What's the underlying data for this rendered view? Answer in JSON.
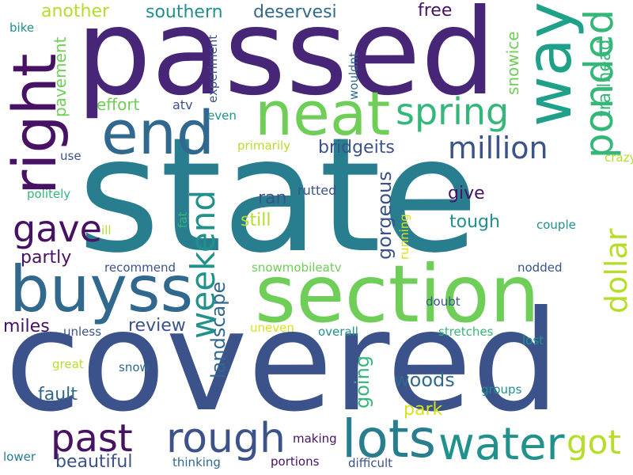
{
  "palette": {
    "indigo": "#482677",
    "purple": "#471164",
    "blue": "#3b528b",
    "blue_dark": "#31688e",
    "teal": "#287d8e",
    "teal_green": "#21918c",
    "green_teal": "#1fa088",
    "green": "#35b779",
    "light_green": "#6ece58",
    "lime": "#b5de2b",
    "yellow": "#d8e219"
  },
  "words": [
    {
      "id": "state",
      "text": "state"
    },
    {
      "id": "covered",
      "text": "covered"
    },
    {
      "id": "passed",
      "text": "passed"
    },
    {
      "id": "section",
      "text": "section"
    },
    {
      "id": "right",
      "text": "right"
    },
    {
      "id": "buyss",
      "text": "buyss"
    },
    {
      "id": "neat",
      "text": "neat"
    },
    {
      "id": "end",
      "text": "end"
    },
    {
      "id": "way",
      "text": "way"
    },
    {
      "id": "lots",
      "text": "lots"
    },
    {
      "id": "water",
      "text": "water"
    },
    {
      "id": "rough",
      "text": "rough"
    },
    {
      "id": "past",
      "text": "past"
    },
    {
      "id": "spring",
      "text": "spring"
    },
    {
      "id": "ponded",
      "text": "ponded"
    },
    {
      "id": "gave",
      "text": "gave"
    },
    {
      "id": "weekend",
      "text": "weekend"
    },
    {
      "id": "million",
      "text": "million"
    },
    {
      "id": "dollar",
      "text": "dollar"
    },
    {
      "id": "got",
      "text": "got"
    },
    {
      "id": "beautiful",
      "text": "beautiful"
    },
    {
      "id": "landscape",
      "text": "landscape"
    },
    {
      "id": "review",
      "text": "review"
    },
    {
      "id": "miles",
      "text": "miles"
    },
    {
      "id": "woods",
      "text": "woods"
    },
    {
      "id": "fault",
      "text": "fault"
    },
    {
      "id": "going",
      "text": "going"
    },
    {
      "id": "gorgeous",
      "text": "gorgeous"
    },
    {
      "id": "partly",
      "text": "partly"
    },
    {
      "id": "ran",
      "text": "ran"
    },
    {
      "id": "still",
      "text": "still"
    },
    {
      "id": "tough",
      "text": "tough"
    },
    {
      "id": "give",
      "text": "give"
    },
    {
      "id": "bridgeits",
      "text": "bridgeits"
    },
    {
      "id": "park",
      "text": "park"
    },
    {
      "id": "effort",
      "text": "effort"
    },
    {
      "id": "southern",
      "text": "southern"
    },
    {
      "id": "deservesi",
      "text": "deservesi"
    },
    {
      "id": "free",
      "text": "free"
    },
    {
      "id": "another",
      "text": "another"
    },
    {
      "id": "pavement",
      "text": "pavement"
    },
    {
      "id": "trailhead",
      "text": "trailhead"
    },
    {
      "id": "snowice",
      "text": "snowice"
    },
    {
      "id": "rutted",
      "text": "rutted"
    },
    {
      "id": "primarily",
      "text": "primarily"
    },
    {
      "id": "crazy",
      "text": "crazy"
    },
    {
      "id": "atv",
      "text": "atv"
    },
    {
      "id": "even",
      "text": "even"
    },
    {
      "id": "experiment",
      "text": "experiment"
    },
    {
      "id": "wouldnt",
      "text": "wouldnt"
    },
    {
      "id": "bike",
      "text": "bike"
    },
    {
      "id": "use",
      "text": "use"
    },
    {
      "id": "politely",
      "text": "politely"
    },
    {
      "id": "fat",
      "text": "fat"
    },
    {
      "id": "ill",
      "text": "ill"
    },
    {
      "id": "running",
      "text": "running"
    },
    {
      "id": "couple",
      "text": "couple"
    },
    {
      "id": "recommend",
      "text": "recommend"
    },
    {
      "id": "snowmobileatv",
      "text": "snowmobileatv"
    },
    {
      "id": "nodded",
      "text": "nodded"
    },
    {
      "id": "doubt",
      "text": "doubt"
    },
    {
      "id": "unless",
      "text": "unless"
    },
    {
      "id": "uneven",
      "text": "uneven"
    },
    {
      "id": "overall",
      "text": "overall"
    },
    {
      "id": "stretches",
      "text": "stretches"
    },
    {
      "id": "lost",
      "text": "lost"
    },
    {
      "id": "great",
      "text": "great"
    },
    {
      "id": "snow",
      "text": "snow"
    },
    {
      "id": "groups",
      "text": "groups"
    },
    {
      "id": "making",
      "text": "making"
    },
    {
      "id": "thinking",
      "text": "thinking"
    },
    {
      "id": "portions",
      "text": "portions"
    },
    {
      "id": "difficult",
      "text": "difficult"
    },
    {
      "id": "lower",
      "text": "lower"
    }
  ]
}
